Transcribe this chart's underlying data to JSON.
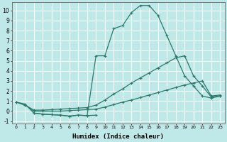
{
  "xlabel": "Humidex (Indice chaleur)",
  "background_color": "#bfe8e8",
  "grid_color": "#ffffff",
  "line_color": "#2a7a6a",
  "xlim": [
    -0.5,
    23.5
  ],
  "ylim": [
    -1.2,
    10.8
  ],
  "yticks": [
    -1,
    0,
    1,
    2,
    3,
    4,
    5,
    6,
    7,
    8,
    9,
    10
  ],
  "xticks": [
    0,
    1,
    2,
    3,
    4,
    5,
    6,
    7,
    8,
    9,
    10,
    11,
    12,
    13,
    14,
    15,
    16,
    17,
    18,
    19,
    20,
    21,
    22,
    23
  ],
  "series": {
    "s1_x": [
      0,
      1,
      2,
      3,
      4,
      5,
      6,
      7,
      8,
      9,
      10,
      11,
      12,
      13,
      14,
      15,
      16,
      17,
      18,
      19,
      20,
      21,
      22,
      23
    ],
    "s1_y": [
      0.9,
      0.7,
      -0.2,
      -0.3,
      -0.35,
      -0.4,
      -0.5,
      -0.4,
      -0.45,
      5.5,
      5.5,
      8.2,
      8.5,
      9.8,
      10.5,
      10.5,
      9.5,
      7.5,
      5.5,
      3.5,
      2.5,
      1.5,
      1.3,
      1.5
    ],
    "s2_x": [
      0,
      1,
      2,
      3,
      4,
      5,
      6,
      7,
      8,
      9,
      10,
      11,
      12,
      13,
      14,
      15,
      16,
      17,
      18,
      19,
      20,
      21,
      22,
      23
    ],
    "s2_y": [
      0.9,
      0.6,
      0.1,
      0.1,
      0.15,
      0.2,
      0.25,
      0.3,
      0.35,
      0.6,
      1.1,
      1.7,
      2.2,
      2.8,
      3.3,
      3.8,
      4.3,
      4.8,
      5.3,
      5.5,
      3.5,
      2.5,
      1.4,
      1.5
    ],
    "s3_x": [
      0,
      1,
      2,
      3,
      4,
      5,
      6,
      7,
      8,
      9,
      10,
      11,
      12,
      13,
      14,
      15,
      16,
      17,
      18,
      19,
      20,
      21,
      22,
      23
    ],
    "s3_y": [
      0.9,
      0.6,
      0.0,
      0.0,
      0.0,
      0.0,
      0.05,
      0.1,
      0.15,
      0.2,
      0.4,
      0.65,
      0.9,
      1.1,
      1.35,
      1.6,
      1.85,
      2.1,
      2.35,
      2.6,
      2.8,
      3.0,
      1.5,
      1.6
    ],
    "s4_x": [
      2,
      3,
      4,
      5,
      6,
      7,
      8,
      9
    ],
    "s4_y": [
      -0.2,
      -0.3,
      -0.35,
      -0.4,
      -0.5,
      -0.4,
      -0.45,
      -0.4
    ]
  }
}
